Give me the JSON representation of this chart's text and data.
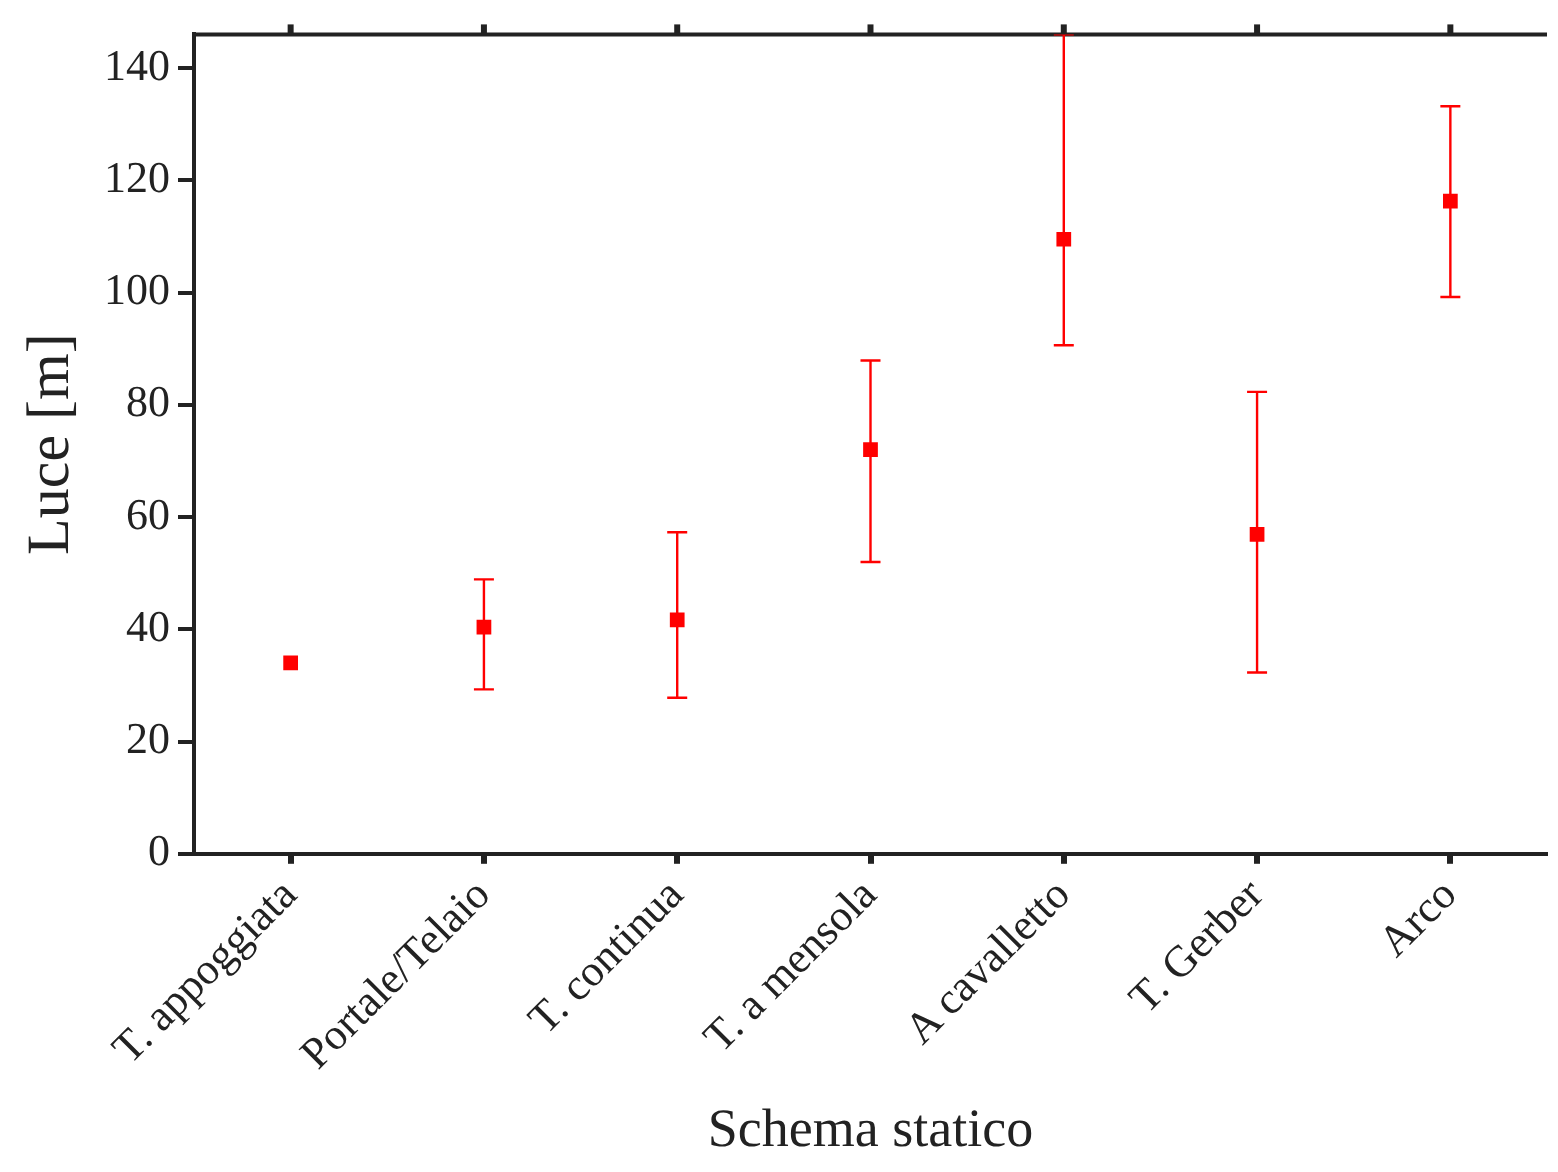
{
  "chart_data": {
    "type": "scatter",
    "xlabel": "Schema statico",
    "ylabel": "Luce [m]",
    "categories": [
      "T. appoggiata",
      "Portale/Telaio",
      "T. continua",
      "T. a mensola",
      "A cavalletto",
      "T. Gerber",
      "Arco"
    ],
    "series": [
      {
        "color": "#ff0000",
        "values": [
          34,
          40.4,
          41.7,
          72,
          109.5,
          56.9,
          116.3
        ],
        "errors": [
          null,
          [
            29.3,
            48.9
          ],
          [
            27.8,
            57.3
          ],
          [
            52,
            87.9
          ],
          [
            90.6,
            146
          ],
          [
            32.3,
            82.3
          ],
          [
            99.2,
            133.2
          ]
        ]
      }
    ],
    "ylim": [
      0,
      146
    ],
    "yticks": [
      0,
      20,
      40,
      60,
      80,
      100,
      120,
      140
    ],
    "grid": false,
    "legend": false,
    "marker": "square"
  }
}
